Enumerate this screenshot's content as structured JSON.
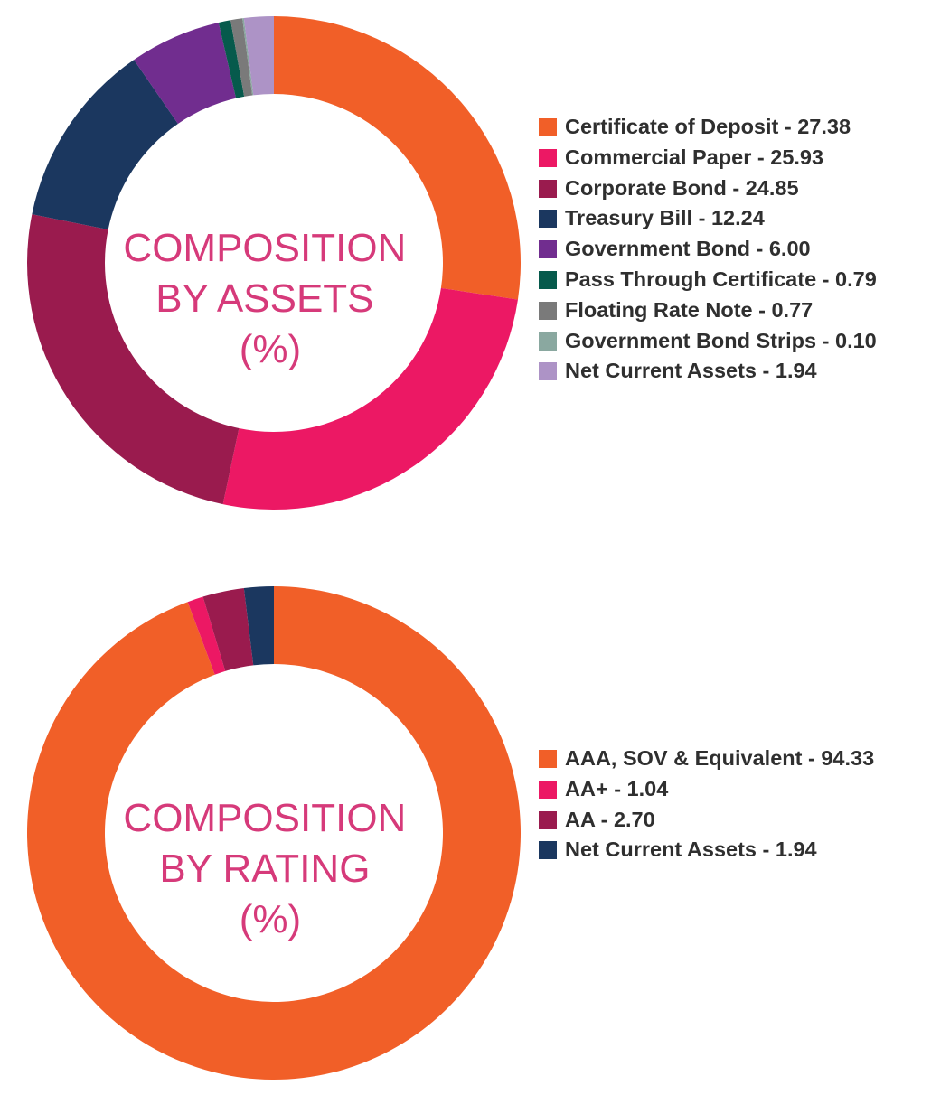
{
  "chart_data": [
    {
      "type": "donut",
      "center_label": [
        "COMPOSITION",
        "BY ASSETS",
        "(%)"
      ],
      "slices": [
        {
          "label": "Certificate of Deposit - 27.38",
          "value": 27.38,
          "color": "#f15f28"
        },
        {
          "label": "Commercial Paper - 25.93",
          "value": 25.93,
          "color": "#ec1864"
        },
        {
          "label": "Corporate Bond - 24.85",
          "value": 24.85,
          "color": "#9a1b4e"
        },
        {
          "label": "Treasury Bill - 12.24",
          "value": 12.24,
          "color": "#1b375f"
        },
        {
          "label": "Government Bond - 6.00",
          "value": 6.0,
          "color": "#712d8f"
        },
        {
          "label": "Pass Through Certificate - 0.79",
          "value": 0.79,
          "color": "#065a4c"
        },
        {
          "label": "Floating Rate Note - 0.77",
          "value": 0.77,
          "color": "#7a7a7a"
        },
        {
          "label": "Government Bond Strips - 0.10",
          "value": 0.1,
          "color": "#8aa8a0"
        },
        {
          "label": "Net Current Assets - 1.94",
          "value": 1.94,
          "color": "#ad93c6"
        }
      ],
      "legend_position": "right"
    },
    {
      "type": "donut",
      "center_label": [
        "COMPOSITION",
        "BY RATING",
        "(%)"
      ],
      "slices": [
        {
          "label": "AAA, SOV & Equivalent - 94.33",
          "value": 94.33,
          "color": "#f15f28"
        },
        {
          "label": "AA+ - 1.04",
          "value": 1.04,
          "color": "#ec1864"
        },
        {
          "label": "AA - 2.70",
          "value": 2.7,
          "color": "#9a1b4e"
        },
        {
          "label": "Net Current Assets - 1.94",
          "value": 1.94,
          "color": "#1b375f"
        }
      ],
      "legend_position": "right"
    }
  ]
}
